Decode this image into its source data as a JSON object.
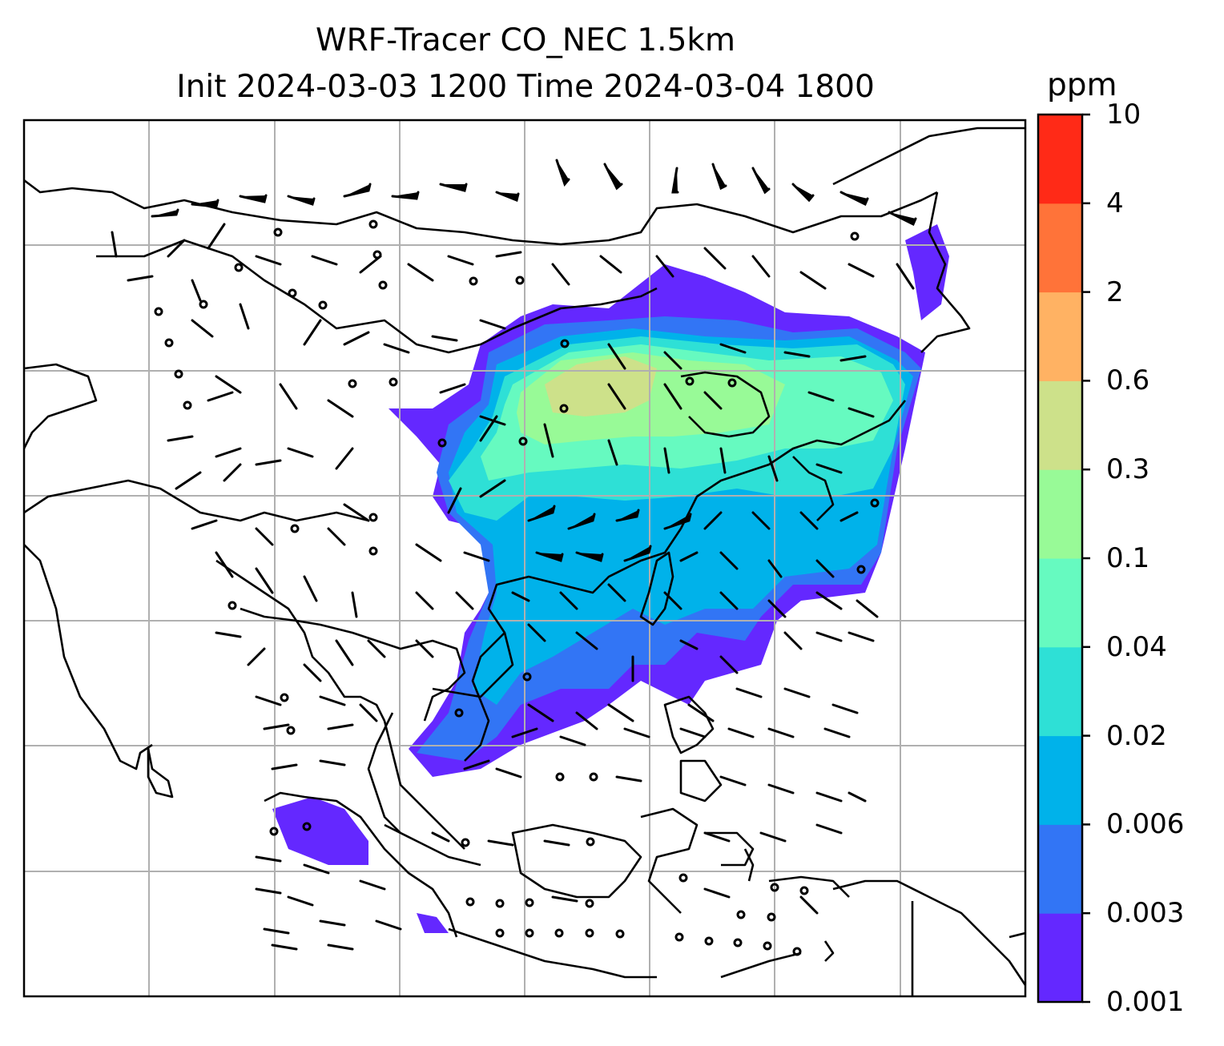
{
  "title": {
    "line1": "WRF-Tracer CO_NEC 1.5km",
    "line2": "Init 2024-03-03 1200 Time 2024-03-04 1800"
  },
  "colorbar": {
    "unit": "ppm",
    "levels": [
      "0.001",
      "0.003",
      "0.006",
      "0.02",
      "0.04",
      "0.1",
      "0.3",
      "0.6",
      "2",
      "4",
      "10"
    ],
    "colors": [
      "#6428ff",
      "#3275f5",
      "#00b2ea",
      "#2ee0d6",
      "#66fac0",
      "#98fa97",
      "#cde18a",
      "#ffb263",
      "#ff7339",
      "#ff2a17"
    ]
  },
  "map": {
    "projection_grid": true,
    "field": "CO_NEC tracer concentration",
    "overlay": "wind barbs"
  }
}
